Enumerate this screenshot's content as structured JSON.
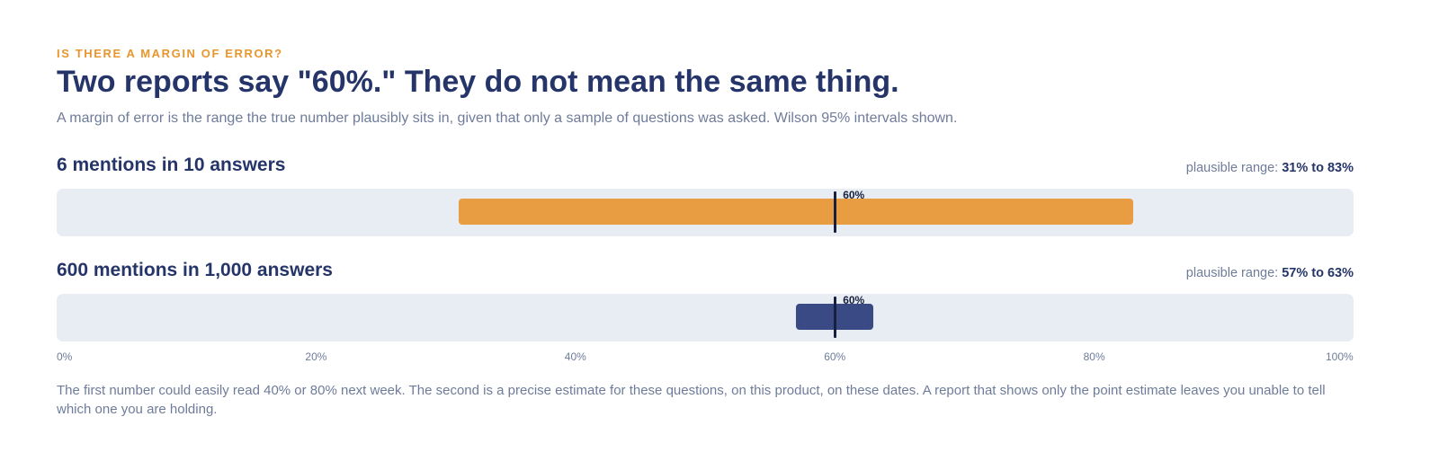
{
  "eyebrow": "IS THERE A MARGIN OF ERROR?",
  "title": "Two reports say \"60%.\" They do not mean the same thing.",
  "subtitle": "A margin of error is the range the true number plausibly sits in, given that only a sample of questions was asked. Wilson 95% intervals shown.",
  "range_prefix": "plausible range:",
  "footnote": "The first number could easily read 40% or 80% next week. The second is a precise estimate for these questions, on this product, on these dates. A report that shows only the point estimate leaves you unable to tell which one you are holding.",
  "colors": {
    "interval_small_sample": "#e89d42",
    "interval_large_sample": "#3a4a85",
    "marker": "#16213f",
    "track": "#e8ecf3"
  },
  "chart_data": {
    "type": "interval",
    "xlim": [
      0,
      100
    ],
    "x_unit": "%",
    "ticks": [
      "0%",
      "20%",
      "40%",
      "60%",
      "80%",
      "100%"
    ],
    "tick_values": [
      0,
      20,
      40,
      60,
      80,
      100
    ],
    "rows": [
      {
        "label": "6 mentions in 10 answers",
        "point": 60,
        "point_label": "60%",
        "low": 31,
        "high": 83,
        "range_label": "31% to 83%"
      },
      {
        "label": "600 mentions in 1,000 answers",
        "point": 60,
        "point_label": "60%",
        "low": 57,
        "high": 63,
        "range_label": "57% to 63%"
      }
    ]
  }
}
